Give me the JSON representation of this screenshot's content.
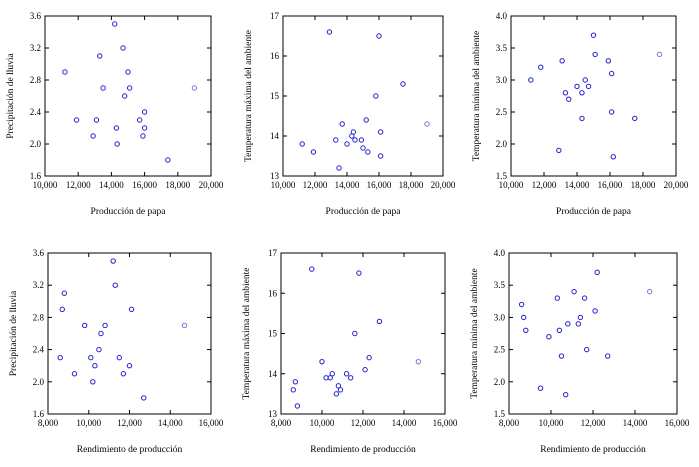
{
  "colors": {
    "point": "#2222cc",
    "point_outlier": "#7777dd",
    "axis": "#000000"
  },
  "chart_data": [
    {
      "type": "scatter",
      "xlabel": "Producción de papa",
      "ylabel": "Precipitación de lluvia",
      "xlim": [
        10000,
        20000
      ],
      "ylim": [
        1.6,
        3.6
      ],
      "xticks": [
        10000,
        12000,
        14000,
        16000,
        18000,
        20000
      ],
      "xtick_labels": [
        "10,000",
        "12,000",
        "14,000",
        "16,000",
        "18,000",
        "20,000"
      ],
      "yticks": [
        1.6,
        2.0,
        2.4,
        2.8,
        3.2,
        3.6
      ],
      "ytick_labels": [
        "1.6",
        "2.0",
        "2.4",
        "2.8",
        "3.2",
        "3.6"
      ],
      "points": [
        [
          11200,
          2.9
        ],
        [
          11900,
          2.3
        ],
        [
          12900,
          2.1
        ],
        [
          13100,
          2.3
        ],
        [
          13300,
          3.1
        ],
        [
          13500,
          2.7
        ],
        [
          14200,
          3.5
        ],
        [
          14300,
          2.2
        ],
        [
          14350,
          2.0
        ],
        [
          14700,
          3.2
        ],
        [
          14800,
          2.6
        ],
        [
          15000,
          2.9
        ],
        [
          15100,
          2.7
        ],
        [
          15700,
          2.3
        ],
        [
          15900,
          2.1
        ],
        [
          16000,
          2.2
        ],
        [
          16000,
          2.4
        ],
        [
          17400,
          1.8
        ],
        [
          19000,
          2.7
        ]
      ]
    },
    {
      "type": "scatter",
      "xlabel": "Producción de papa",
      "ylabel": "Temperatura máxima del ambiente",
      "xlim": [
        10000,
        20000
      ],
      "ylim": [
        13,
        17
      ],
      "xticks": [
        10000,
        12000,
        14000,
        16000,
        18000,
        20000
      ],
      "xtick_labels": [
        "10,000",
        "12,000",
        "14,000",
        "16,000",
        "18,000",
        "20,000"
      ],
      "yticks": [
        13,
        14,
        15,
        16,
        17
      ],
      "ytick_labels": [
        "13",
        "14",
        "15",
        "16",
        "17"
      ],
      "points": [
        [
          11200,
          13.8
        ],
        [
          11900,
          13.6
        ],
        [
          12900,
          16.6
        ],
        [
          13300,
          13.9
        ],
        [
          13500,
          13.2
        ],
        [
          13700,
          14.3
        ],
        [
          14000,
          13.8
        ],
        [
          14300,
          14.0
        ],
        [
          14400,
          14.1
        ],
        [
          14500,
          13.9
        ],
        [
          14900,
          13.9
        ],
        [
          15000,
          13.7
        ],
        [
          15200,
          14.4
        ],
        [
          15300,
          13.6
        ],
        [
          15800,
          15.0
        ],
        [
          16000,
          16.5
        ],
        [
          16100,
          14.1
        ],
        [
          16100,
          13.5
        ],
        [
          17500,
          15.3
        ],
        [
          19000,
          14.3
        ]
      ]
    },
    {
      "type": "scatter",
      "xlabel": "Producción de papa",
      "ylabel": "Temperatura mínima del ambiente",
      "xlim": [
        10000,
        20000
      ],
      "ylim": [
        1.5,
        4.0
      ],
      "xticks": [
        10000,
        12000,
        14000,
        16000,
        18000,
        20000
      ],
      "xtick_labels": [
        "10,000",
        "12,000",
        "14,000",
        "16,000",
        "18,000",
        "20,000"
      ],
      "yticks": [
        1.5,
        2.0,
        2.5,
        3.0,
        3.5,
        4.0
      ],
      "ytick_labels": [
        "1.5",
        "2.0",
        "2.5",
        "3.0",
        "3.5",
        "4.0"
      ],
      "points": [
        [
          11200,
          3.0
        ],
        [
          11800,
          3.2
        ],
        [
          12900,
          1.9
        ],
        [
          13100,
          3.3
        ],
        [
          13300,
          2.8
        ],
        [
          13500,
          2.7
        ],
        [
          14000,
          2.9
        ],
        [
          14300,
          2.4
        ],
        [
          14300,
          2.8
        ],
        [
          14500,
          3.0
        ],
        [
          14700,
          2.9
        ],
        [
          15000,
          3.7
        ],
        [
          15100,
          3.4
        ],
        [
          15900,
          3.3
        ],
        [
          16100,
          3.1
        ],
        [
          16100,
          2.5
        ],
        [
          16200,
          1.8
        ],
        [
          17500,
          2.4
        ],
        [
          19000,
          3.4
        ]
      ]
    },
    {
      "type": "scatter",
      "xlabel": "Rendimiento de producción",
      "ylabel": "Precipitación de lluvia",
      "xlim": [
        8000,
        16000
      ],
      "ylim": [
        1.6,
        3.6
      ],
      "xticks": [
        8000,
        10000,
        12000,
        14000,
        16000
      ],
      "xtick_labels": [
        "8,000",
        "10,000",
        "12,000",
        "14,000",
        "16,000"
      ],
      "yticks": [
        1.6,
        2.0,
        2.4,
        2.8,
        3.2,
        3.6
      ],
      "ytick_labels": [
        "1.6",
        "2.0",
        "2.4",
        "2.8",
        "3.2",
        "3.6"
      ],
      "points": [
        [
          8600,
          2.3
        ],
        [
          8700,
          2.9
        ],
        [
          8800,
          3.1
        ],
        [
          9300,
          2.1
        ],
        [
          9800,
          2.7
        ],
        [
          10100,
          2.3
        ],
        [
          10200,
          2.0
        ],
        [
          10300,
          2.2
        ],
        [
          10500,
          2.4
        ],
        [
          10600,
          2.6
        ],
        [
          10800,
          2.7
        ],
        [
          11200,
          3.5
        ],
        [
          11300,
          3.2
        ],
        [
          11500,
          2.3
        ],
        [
          11700,
          2.1
        ],
        [
          12000,
          2.2
        ],
        [
          12100,
          2.9
        ],
        [
          12700,
          1.8
        ],
        [
          14700,
          2.7
        ]
      ]
    },
    {
      "type": "scatter",
      "xlabel": "Rendimiento de producción",
      "ylabel": "Temperatura máxima del ambiente",
      "xlim": [
        8000,
        16000
      ],
      "ylim": [
        13,
        17
      ],
      "xticks": [
        8000,
        10000,
        12000,
        14000,
        16000
      ],
      "xtick_labels": [
        "8,000",
        "10,000",
        "12,000",
        "14,000",
        "16,000"
      ],
      "yticks": [
        13,
        14,
        15,
        16,
        17
      ],
      "ytick_labels": [
        "13",
        "14",
        "15",
        "16",
        "17"
      ],
      "points": [
        [
          8600,
          13.6
        ],
        [
          8700,
          13.8
        ],
        [
          8800,
          13.2
        ],
        [
          9500,
          16.6
        ],
        [
          10000,
          14.3
        ],
        [
          10200,
          13.9
        ],
        [
          10400,
          13.9
        ],
        [
          10500,
          14.0
        ],
        [
          10700,
          13.5
        ],
        [
          10800,
          13.7
        ],
        [
          10900,
          13.6
        ],
        [
          11200,
          14.0
        ],
        [
          11400,
          13.9
        ],
        [
          11600,
          15.0
        ],
        [
          11800,
          16.5
        ],
        [
          12100,
          14.1
        ],
        [
          12300,
          14.4
        ],
        [
          12800,
          15.3
        ],
        [
          14700,
          14.3
        ]
      ]
    },
    {
      "type": "scatter",
      "xlabel": "Rendimiento de producción",
      "ylabel": "Temperatura mínima del ambiente",
      "xlim": [
        8000,
        16000
      ],
      "ylim": [
        1.5,
        4.0
      ],
      "xticks": [
        8000,
        10000,
        12000,
        14000,
        16000
      ],
      "xtick_labels": [
        "8,000",
        "10,000",
        "12,000",
        "14,000",
        "16,000"
      ],
      "yticks": [
        1.5,
        2.0,
        2.5,
        3.0,
        3.5,
        4.0
      ],
      "ytick_labels": [
        "1.5",
        "2.0",
        "2.5",
        "3.0",
        "3.5",
        "4.0"
      ],
      "points": [
        [
          8600,
          3.2
        ],
        [
          8700,
          3.0
        ],
        [
          8800,
          2.8
        ],
        [
          9500,
          1.9
        ],
        [
          9900,
          2.7
        ],
        [
          10300,
          3.3
        ],
        [
          10400,
          2.8
        ],
        [
          10500,
          2.4
        ],
        [
          10700,
          1.8
        ],
        [
          10800,
          2.9
        ],
        [
          11100,
          3.4
        ],
        [
          11300,
          2.9
        ],
        [
          11400,
          3.0
        ],
        [
          11600,
          3.3
        ],
        [
          11700,
          2.5
        ],
        [
          12100,
          3.1
        ],
        [
          12200,
          3.7
        ],
        [
          12700,
          2.4
        ],
        [
          14700,
          3.4
        ]
      ]
    }
  ]
}
